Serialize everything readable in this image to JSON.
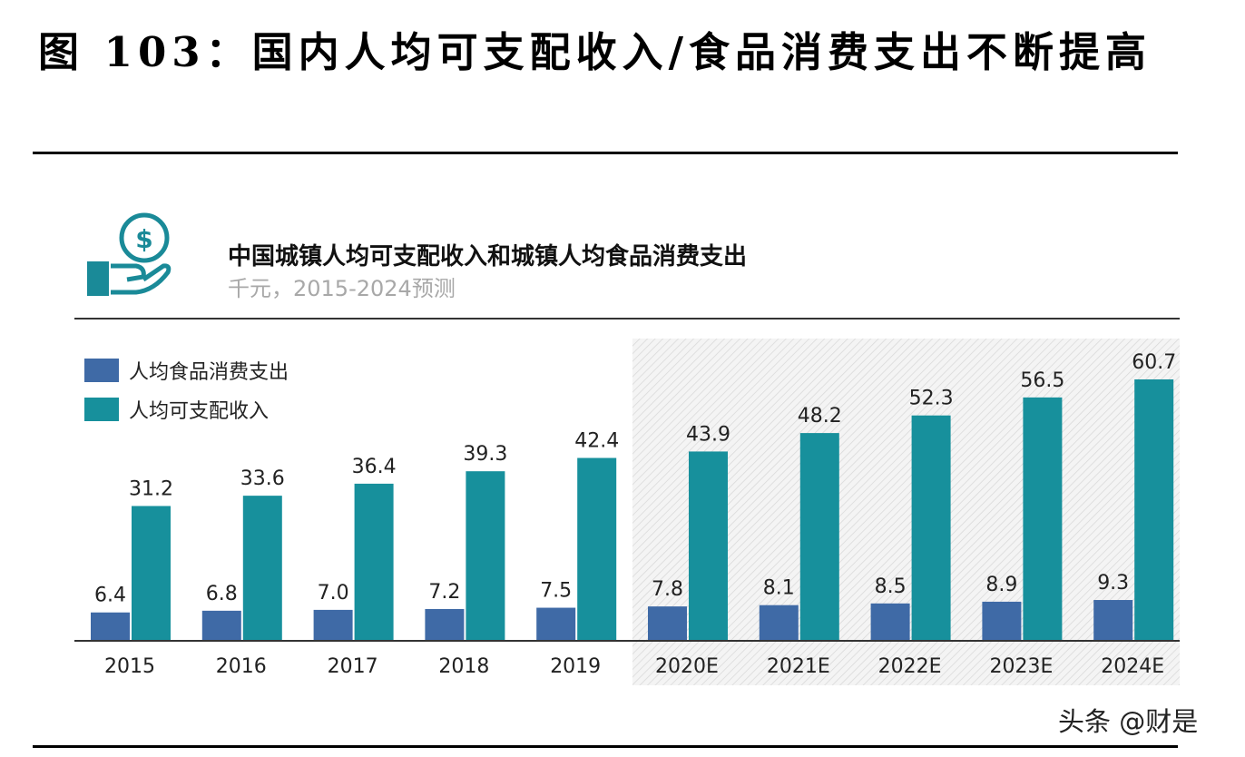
{
  "figure_title": "图 103：国内人均可支配收入/食品消费支出不断提高",
  "watermark": "头条 @财是",
  "colors": {
    "food": "#3f6aa6",
    "income": "#17909c",
    "icon": "#1a8a98"
  },
  "icon": "hand-coin-dollar-icon",
  "chart_data": {
    "type": "bar",
    "title": "中国城镇人均可支配收入和城镇人均食品消费支出",
    "subtitle": "千元，2015-2024预测",
    "categories": [
      "2015",
      "2016",
      "2017",
      "2018",
      "2019",
      "2020E",
      "2021E",
      "2022E",
      "2023E",
      "2024E"
    ],
    "series": [
      {
        "name": "人均食品消费支出",
        "values": [
          6.4,
          6.8,
          7.0,
          7.2,
          7.5,
          7.8,
          8.1,
          8.5,
          8.9,
          9.3
        ]
      },
      {
        "name": "人均可支配收入",
        "values": [
          31.2,
          33.6,
          36.4,
          39.3,
          42.4,
          43.9,
          48.2,
          52.3,
          56.5,
          60.7
        ]
      }
    ],
    "forecast_shaded_from": "2020E",
    "ylim": [
      0,
      60.7
    ],
    "legend": "top-left",
    "grid": false
  }
}
